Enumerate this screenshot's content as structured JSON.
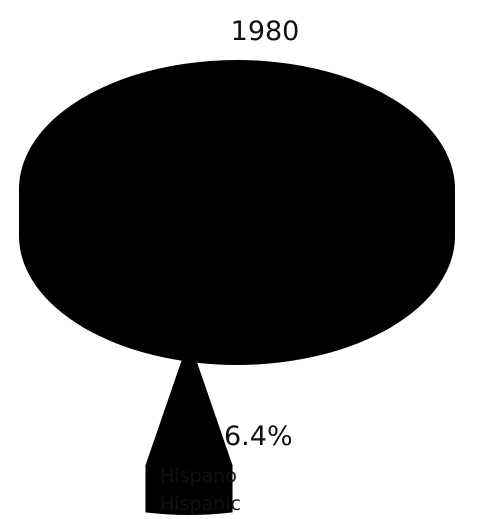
{
  "chart_data": {
    "type": "pie",
    "title": "1980",
    "slices": [
      {
        "label": "",
        "value": 93.6
      },
      {
        "label": "Hispano Hispanic",
        "value": 6.4,
        "value_label": "6.4%",
        "label_lines": [
          "Hispano",
          "Hispanic"
        ]
      }
    ],
    "style": "3d-exploded",
    "colors": {
      "fill": "#000000",
      "background": "#ffffff"
    }
  }
}
